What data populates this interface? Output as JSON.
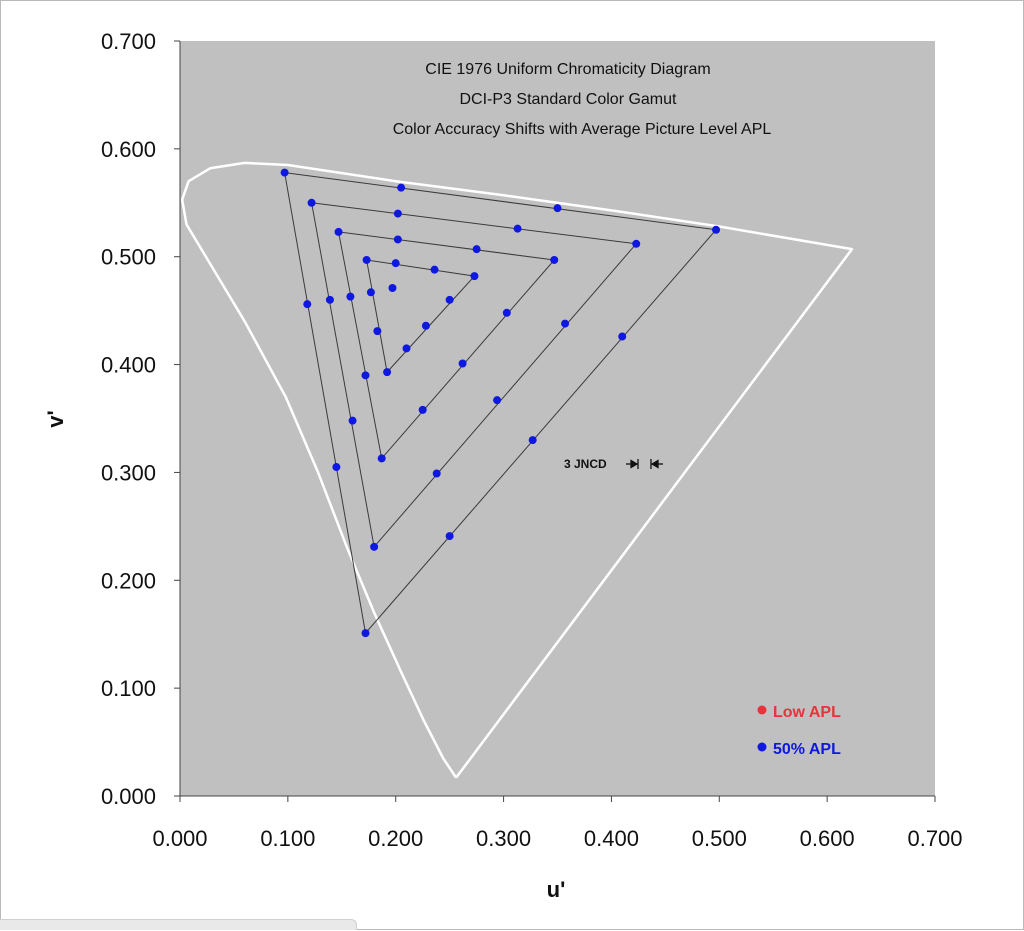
{
  "chart_data": {
    "type": "scatter",
    "title": [
      "CIE 1976 Uniform Chromaticity Diagram",
      "DCI-P3 Standard Color Gamut",
      "Color Accuracy Shifts with Average Picture Level APL"
    ],
    "xlabel": "u'",
    "ylabel": "v'",
    "xlim": [
      0.0,
      0.7
    ],
    "ylim": [
      0.0,
      0.7
    ],
    "xticks": [
      "0.000",
      "0.100",
      "0.200",
      "0.300",
      "0.400",
      "0.500",
      "0.600",
      "0.700"
    ],
    "yticks": [
      "0.000",
      "0.100",
      "0.200",
      "0.300",
      "0.400",
      "0.500",
      "0.600",
      "0.700"
    ],
    "grid": false,
    "plot_background": "#c0c0c0",
    "locus_color": "#ffffff",
    "line_color": "#3a3a3a",
    "spectral_locus": [
      [
        0.256,
        0.017
      ],
      [
        0.244,
        0.035
      ],
      [
        0.226,
        0.07
      ],
      [
        0.205,
        0.115
      ],
      [
        0.18,
        0.17
      ],
      [
        0.155,
        0.23
      ],
      [
        0.128,
        0.3
      ],
      [
        0.098,
        0.37
      ],
      [
        0.06,
        0.44
      ],
      [
        0.03,
        0.49
      ],
      [
        0.006,
        0.53
      ],
      [
        0.002,
        0.553
      ],
      [
        0.008,
        0.57
      ],
      [
        0.028,
        0.582
      ],
      [
        0.06,
        0.587
      ],
      [
        0.1,
        0.585
      ],
      [
        0.2,
        0.57
      ],
      [
        0.3,
        0.557
      ],
      [
        0.4,
        0.543
      ],
      [
        0.5,
        0.528
      ],
      [
        0.623,
        0.507
      ],
      [
        0.256,
        0.017
      ]
    ],
    "triangles": [
      [
        [
          0.097,
          0.578
        ],
        [
          0.497,
          0.525
        ],
        [
          0.172,
          0.151
        ]
      ],
      [
        [
          0.122,
          0.55
        ],
        [
          0.423,
          0.512
        ],
        [
          0.18,
          0.231
        ]
      ],
      [
        [
          0.147,
          0.523
        ],
        [
          0.347,
          0.497
        ],
        [
          0.187,
          0.313
        ]
      ],
      [
        [
          0.173,
          0.497
        ],
        [
          0.273,
          0.482
        ],
        [
          0.192,
          0.393
        ]
      ]
    ],
    "series": [
      {
        "name": "Low APL",
        "color": "#e8323c",
        "points": []
      },
      {
        "name": "50% APL",
        "color": "#0f18e0",
        "points": [
          [
            0.097,
            0.578
          ],
          [
            0.205,
            0.564
          ],
          [
            0.35,
            0.545
          ],
          [
            0.497,
            0.525
          ],
          [
            0.41,
            0.426
          ],
          [
            0.327,
            0.33
          ],
          [
            0.25,
            0.241
          ],
          [
            0.172,
            0.151
          ],
          [
            0.145,
            0.305
          ],
          [
            0.118,
            0.456
          ],
          [
            0.122,
            0.55
          ],
          [
            0.202,
            0.54
          ],
          [
            0.313,
            0.526
          ],
          [
            0.423,
            0.512
          ],
          [
            0.357,
            0.438
          ],
          [
            0.294,
            0.367
          ],
          [
            0.238,
            0.299
          ],
          [
            0.18,
            0.231
          ],
          [
            0.16,
            0.348
          ],
          [
            0.139,
            0.46
          ],
          [
            0.147,
            0.523
          ],
          [
            0.202,
            0.516
          ],
          [
            0.275,
            0.507
          ],
          [
            0.347,
            0.497
          ],
          [
            0.303,
            0.448
          ],
          [
            0.262,
            0.401
          ],
          [
            0.225,
            0.358
          ],
          [
            0.187,
            0.313
          ],
          [
            0.172,
            0.39
          ],
          [
            0.158,
            0.463
          ],
          [
            0.173,
            0.497
          ],
          [
            0.2,
            0.494
          ],
          [
            0.236,
            0.488
          ],
          [
            0.273,
            0.482
          ],
          [
            0.25,
            0.46
          ],
          [
            0.228,
            0.436
          ],
          [
            0.21,
            0.415
          ],
          [
            0.192,
            0.393
          ],
          [
            0.183,
            0.431
          ],
          [
            0.177,
            0.467
          ],
          [
            0.197,
            0.471
          ]
        ]
      }
    ],
    "annotations": [
      {
        "text": "3 JNCD",
        "at": [
          0.395,
          0.31
        ]
      }
    ],
    "legend_placement": "bottom-right"
  }
}
